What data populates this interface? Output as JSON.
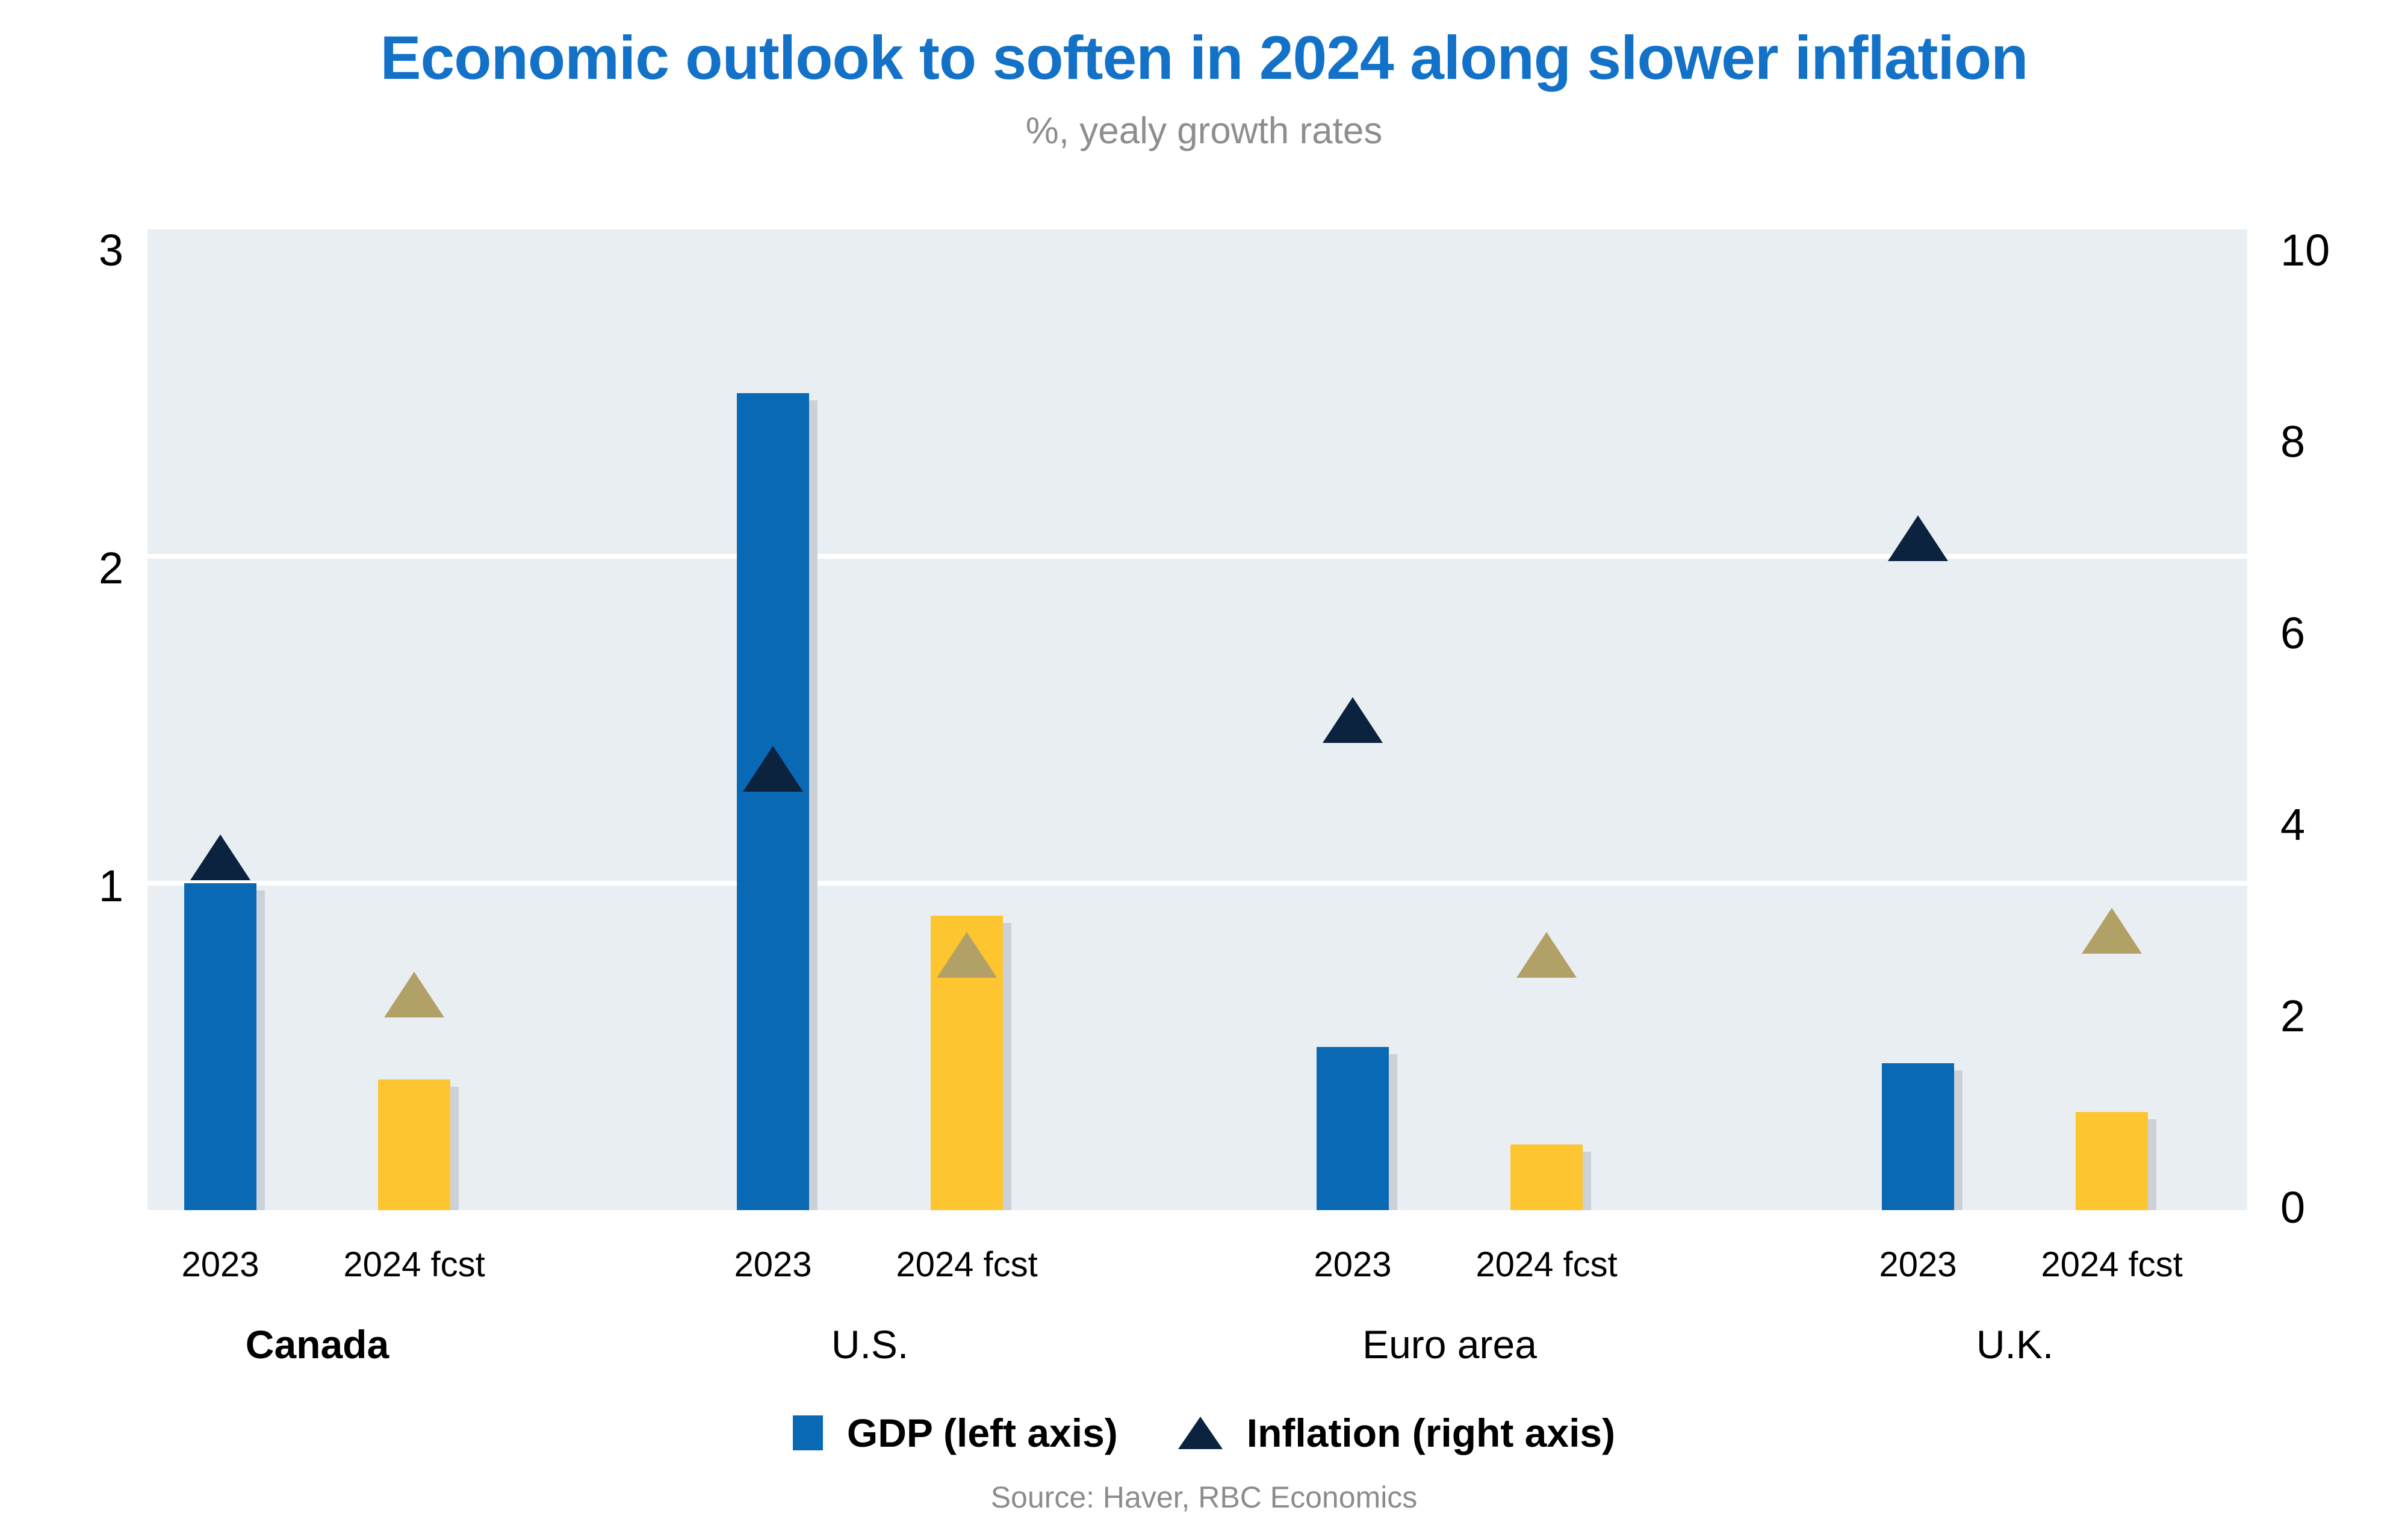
{
  "title": "Economic outlook to soften in 2024 along slower inflation",
  "subtitle": "%, yealy growth rates",
  "source": "Source: Haver, RBC Economics",
  "legend": {
    "gdp_label": "GDP (left axis)",
    "inflation_label": "Inflation (right axis)"
  },
  "colors": {
    "title_blue": "#1372c8",
    "subtitle_gray": "#8e8e8e",
    "source_gray": "#8c8c8c",
    "bar_blue": "#0a69b5",
    "bar_yellow": "#fdc52f",
    "triangle_navy": "#0c2340",
    "triangle_gold": "#b2a166",
    "band_background": "#e9eef2",
    "bar_shadow": "#cbd1d7",
    "text_black": "#000000"
  },
  "chart_data": {
    "type": "bar",
    "subtype": "grouped bars (GDP, left axis) with triangle markers (inflation, right axis), dual y-axis",
    "groups": [
      "Canada",
      "U.S.",
      "Euro area",
      "U.K."
    ],
    "x_tick_labels": [
      "2023",
      "2024 fcst"
    ],
    "left_axis": {
      "range": [
        0,
        3
      ],
      "tick_labels": [
        "3",
        "2",
        "1"
      ],
      "tick_values": [
        3,
        2,
        1
      ]
    },
    "right_axis": {
      "range": [
        0,
        10
      ],
      "tick_labels": [
        "10",
        "8",
        "6",
        "4",
        "2",
        "0"
      ],
      "tick_values": [
        10,
        8,
        6,
        4,
        2,
        0
      ]
    },
    "grid": "horizontal white gridlines at left-axis values 1 and 2 over light gray bands",
    "legend_position": "bottom center",
    "series": [
      {
        "name": "GDP 2023",
        "legend": "GDP (left axis)",
        "type": "bar",
        "axis": "left",
        "year": "2023",
        "color_key": "bar_blue",
        "values": [
          1.0,
          2.5,
          0.5,
          0.45
        ]
      },
      {
        "name": "GDP 2024 fcst",
        "legend": "GDP (left axis)",
        "type": "bar",
        "axis": "left",
        "year": "2024 fcst",
        "color_key": "bar_yellow",
        "values": [
          0.4,
          0.9,
          0.2,
          0.3
        ]
      },
      {
        "name": "Inflation 2023",
        "legend": "Inflation (right axis)",
        "type": "triangle",
        "axis": "right",
        "year": "2023",
        "color_key": "triangle_navy",
        "values": [
          3.6,
          4.5,
          5.0,
          6.85
        ]
      },
      {
        "name": "Inflation 2024 fcst",
        "legend": "Inflation (right axis)",
        "type": "triangle",
        "axis": "right",
        "year": "2024 fcst",
        "color_key": "triangle_gold",
        "values": [
          2.2,
          2.6,
          2.6,
          2.85
        ]
      }
    ]
  }
}
